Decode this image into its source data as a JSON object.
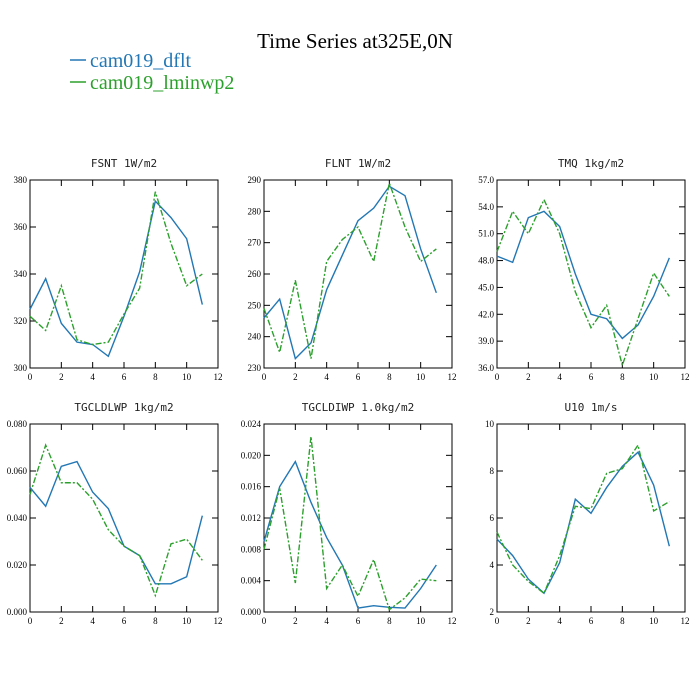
{
  "title": "Time Series at325E,0N",
  "legend": [
    {
      "name": "cam019_dflt",
      "color": "#2277b4"
    },
    {
      "name": "cam019_lminwp2",
      "color": "#2ca02c"
    }
  ],
  "chart_data": [
    {
      "type": "line",
      "title": "FSNT  1W/m2",
      "x": [
        0,
        1,
        2,
        3,
        4,
        5,
        6,
        7,
        8,
        9,
        10,
        11
      ],
      "xlim": [
        0,
        12
      ],
      "xticks": [
        0,
        2,
        4,
        6,
        8,
        10,
        12
      ],
      "ylim": [
        300,
        380
      ],
      "yticks": [
        300,
        320,
        340,
        360,
        380
      ],
      "series": [
        {
          "values": [
            325,
            338,
            319,
            311,
            310,
            305,
            322,
            341,
            371,
            364,
            355,
            327
          ]
        },
        {
          "values": [
            322,
            316,
            335,
            312,
            310,
            311,
            323,
            334,
            375,
            353,
            335,
            340
          ]
        }
      ]
    },
    {
      "type": "line",
      "title": "FLNT  1W/m2",
      "x": [
        0,
        1,
        2,
        3,
        4,
        5,
        6,
        7,
        8,
        9,
        10,
        11
      ],
      "xlim": [
        0,
        12
      ],
      "xticks": [
        0,
        2,
        4,
        6,
        8,
        10,
        12
      ],
      "ylim": [
        230,
        290
      ],
      "yticks": [
        230,
        240,
        250,
        260,
        270,
        280,
        290
      ],
      "series": [
        {
          "values": [
            246,
            252,
            233,
            238,
            255,
            266,
            277,
            281,
            288,
            285,
            268,
            254
          ]
        },
        {
          "values": [
            249,
            235,
            258,
            233,
            264,
            271,
            275,
            264,
            289,
            275,
            264,
            268
          ]
        }
      ]
    },
    {
      "type": "line",
      "title": "TMQ  1kg/m2",
      "x": [
        0,
        1,
        2,
        3,
        4,
        5,
        6,
        7,
        8,
        9,
        10,
        11
      ],
      "xlim": [
        0,
        12
      ],
      "xticks": [
        0,
        2,
        4,
        6,
        8,
        10,
        12
      ],
      "ylim": [
        36,
        57
      ],
      "yticks": [
        {
          "value": 36,
          "label": "36.0"
        },
        {
          "value": 39,
          "label": "39.0"
        },
        {
          "value": 42,
          "label": "42.0"
        },
        {
          "value": 45,
          "label": "45.0"
        },
        {
          "value": 48,
          "label": "48.0"
        },
        {
          "value": 51,
          "label": "51.0"
        },
        {
          "value": 54,
          "label": "54.0"
        },
        {
          "value": 57,
          "label": "57.0"
        }
      ],
      "series": [
        {
          "values": [
            48.5,
            47.8,
            52.8,
            53.5,
            51.8,
            46.5,
            42.0,
            41.5,
            39.3,
            40.8,
            44.0,
            48.3
          ]
        },
        {
          "values": [
            49.0,
            53.5,
            51.0,
            54.8,
            51.0,
            44.5,
            40.5,
            43.0,
            36.3,
            41.5,
            46.6,
            44.0
          ]
        }
      ]
    },
    {
      "type": "line",
      "title": "TGCLDLWP  1kg/m2",
      "x": [
        0,
        1,
        2,
        3,
        4,
        5,
        6,
        7,
        8,
        9,
        10,
        11
      ],
      "xlim": [
        0,
        12
      ],
      "xticks": [
        0,
        2,
        4,
        6,
        8,
        10,
        12
      ],
      "ylim": [
        0,
        0.08
      ],
      "yticks": [
        {
          "value": 0,
          "label": "0.000"
        },
        {
          "value": 0.02,
          "label": "0.020"
        },
        {
          "value": 0.04,
          "label": "0.040"
        },
        {
          "value": 0.06,
          "label": "0.060"
        },
        {
          "value": 0.08,
          "label": "0.080"
        }
      ],
      "series": [
        {
          "values": [
            0.053,
            0.045,
            0.062,
            0.064,
            0.051,
            0.044,
            0.028,
            0.024,
            0.012,
            0.012,
            0.015,
            0.041
          ]
        },
        {
          "values": [
            0.05,
            0.071,
            0.055,
            0.055,
            0.048,
            0.035,
            0.028,
            0.024,
            0.007,
            0.029,
            0.031,
            0.022
          ]
        }
      ]
    },
    {
      "type": "line",
      "title": "TGCLDIWP  1.0kg/m2",
      "x": [
        0,
        1,
        2,
        3,
        4,
        5,
        6,
        7,
        8,
        9,
        10,
        11
      ],
      "xlim": [
        0,
        12
      ],
      "xticks": [
        0,
        2,
        4,
        6,
        8,
        10,
        12
      ],
      "ylim": [
        0,
        0.024
      ],
      "yticks": [
        {
          "value": 0,
          "label": "0.000"
        },
        {
          "value": 0.004,
          "label": "0.004"
        },
        {
          "value": 0.008,
          "label": "0.008"
        },
        {
          "value": 0.012,
          "label": "0.012"
        },
        {
          "value": 0.016,
          "label": "0.016"
        },
        {
          "value": 0.02,
          "label": "0.020"
        },
        {
          "value": 0.024,
          "label": "0.024"
        }
      ],
      "series": [
        {
          "values": [
            0.009,
            0.016,
            0.0192,
            0.014,
            0.0095,
            0.006,
            0.0005,
            0.0008,
            0.0006,
            0.0005,
            0.003,
            0.006
          ]
        },
        {
          "values": [
            0.008,
            0.0158,
            0.0037,
            0.0224,
            0.003,
            0.006,
            0.002,
            0.0067,
            0.0003,
            0.0018,
            0.0042,
            0.004
          ]
        }
      ]
    },
    {
      "type": "line",
      "title": "U10  1m/s",
      "x": [
        0,
        1,
        2,
        3,
        4,
        5,
        6,
        7,
        8,
        9,
        10,
        11
      ],
      "xlim": [
        0,
        12
      ],
      "xticks": [
        0,
        2,
        4,
        6,
        8,
        10,
        12
      ],
      "ylim": [
        2,
        10
      ],
      "yticks": [
        2,
        4,
        6,
        8,
        10
      ],
      "series": [
        {
          "values": [
            5.1,
            4.4,
            3.4,
            2.8,
            4.1,
            6.8,
            6.2,
            7.3,
            8.2,
            8.8,
            7.4,
            4.8
          ]
        },
        {
          "values": [
            5.4,
            4.0,
            3.3,
            2.8,
            4.4,
            6.5,
            6.4,
            7.9,
            8.1,
            9.1,
            6.3,
            6.7
          ]
        }
      ]
    }
  ]
}
